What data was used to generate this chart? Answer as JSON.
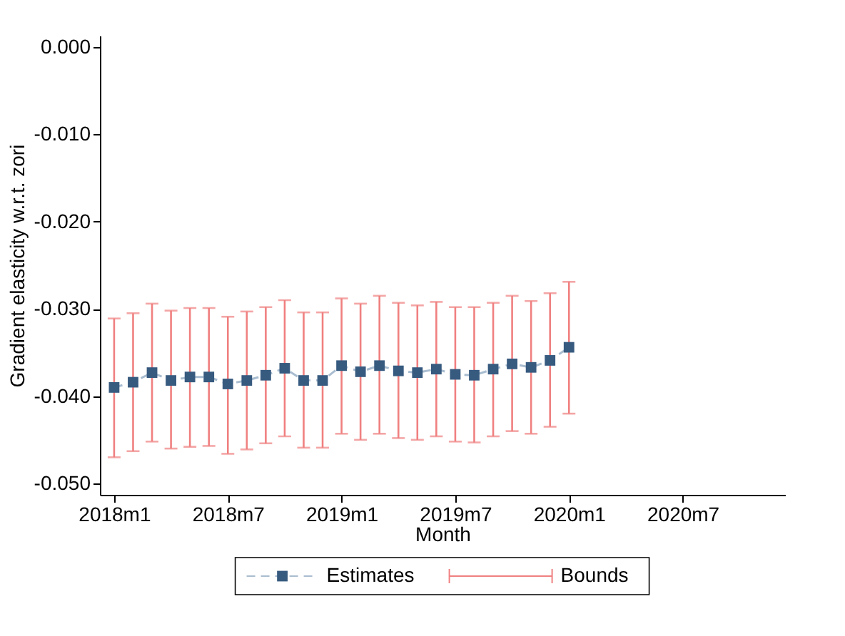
{
  "chart_data": {
    "type": "line",
    "xlabel": "Month",
    "ylabel": "Gradient elasticity w.r.t. zori",
    "categories": [
      "2018m1",
      null,
      null,
      null,
      null,
      null,
      "2018m7",
      null,
      null,
      null,
      null,
      null,
      "2019m1",
      null,
      null,
      null,
      null,
      null,
      "2019m7",
      null,
      null,
      null,
      null,
      null,
      "2020m1",
      null,
      null,
      null,
      null,
      null,
      "2020m7",
      null,
      null,
      null,
      null,
      null
    ],
    "ylim": [
      -0.0513,
      0.0013
    ],
    "yticks": [
      {
        "value": 0,
        "label": "0.000"
      },
      {
        "value": -0.01,
        "label": "-0.010"
      },
      {
        "value": -0.02,
        "label": "-0.020"
      },
      {
        "value": -0.03,
        "label": "-0.030"
      },
      {
        "value": -0.04,
        "label": "-0.040"
      },
      {
        "value": -0.05,
        "label": "-0.050"
      }
    ],
    "series": [
      {
        "name": "Estimates",
        "color": "#375a7f",
        "marker": "square",
        "line_style": "dashed",
        "values": [
          -0.039,
          -0.0384,
          -0.0373,
          -0.0382,
          -0.0378,
          -0.0378,
          -0.0386,
          -0.0382,
          -0.0376,
          -0.0368,
          -0.0382,
          -0.0382,
          -0.0365,
          -0.0372,
          -0.0365,
          -0.0371,
          -0.0373,
          -0.0369,
          -0.0375,
          -0.0376,
          -0.0369,
          -0.0363,
          -0.0367,
          -0.0359,
          -0.0344,
          null,
          null,
          null,
          null,
          null,
          null,
          null,
          null,
          null,
          null,
          null
        ],
        "errors": [
          [
            -0.047,
            -0.0311
          ],
          [
            -0.0463,
            -0.0305
          ],
          [
            -0.0452,
            -0.0294
          ],
          [
            -0.046,
            -0.0302
          ],
          [
            -0.0458,
            -0.0299
          ],
          [
            -0.0457,
            -0.0299
          ],
          [
            -0.0466,
            -0.0309
          ],
          [
            -0.0461,
            -0.0303
          ],
          [
            -0.0454,
            -0.0298
          ],
          [
            -0.0446,
            -0.029
          ],
          [
            -0.0459,
            -0.0304
          ],
          [
            -0.0459,
            -0.0304
          ],
          [
            -0.0443,
            -0.0288
          ],
          [
            -0.045,
            -0.0294
          ],
          [
            -0.0443,
            -0.0285
          ],
          [
            -0.0448,
            -0.0293
          ],
          [
            -0.045,
            -0.0296
          ],
          [
            -0.0446,
            -0.0292
          ],
          [
            -0.0452,
            -0.0298
          ],
          [
            -0.0453,
            -0.0298
          ],
          [
            -0.0446,
            -0.0293
          ],
          [
            -0.044,
            -0.0285
          ],
          [
            -0.0443,
            -0.0291
          ],
          [
            -0.0435,
            -0.0282
          ],
          [
            -0.042,
            -0.0269
          ],
          null,
          null,
          null,
          null,
          null,
          null,
          null,
          null,
          null,
          null,
          null
        ]
      }
    ],
    "annotations": [
      "Bounds"
    ],
    "grid": false,
    "legend": "bottom"
  }
}
